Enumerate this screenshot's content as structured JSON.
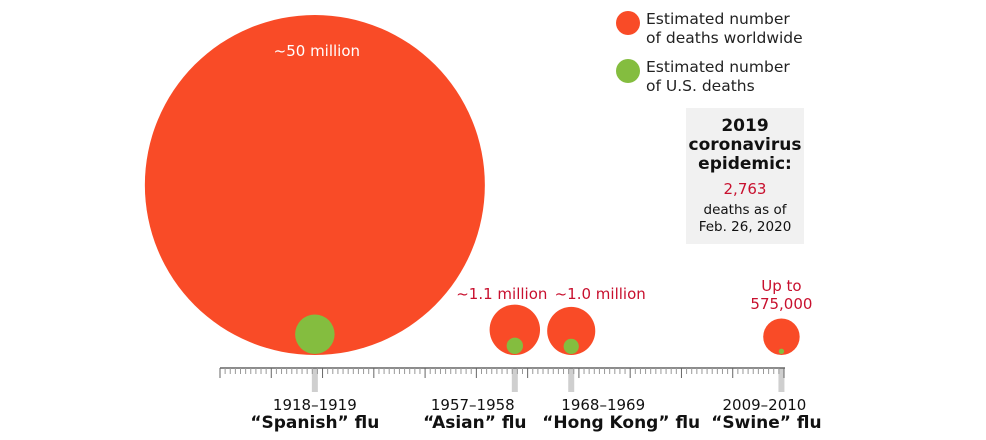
{
  "chart_data": {
    "type": "bubble-timeline",
    "x_axis": {
      "min": 1900,
      "max": 2010,
      "minor_tick_every": 1,
      "major_tick_every": 10
    },
    "legend": {
      "placement": "top-right",
      "items": [
        {
          "label": "Estimated number\nof deaths worldwide",
          "color": "#f94b27"
        },
        {
          "label": "Estimated number\nof U.S. deaths",
          "color": "#84bd3f"
        }
      ]
    },
    "pandemics": [
      {
        "years": "1918–1919",
        "name": "“Spanish” flu",
        "year_mid": 1918.5,
        "world_deaths": 50000000,
        "world_label": "~50 million",
        "us_deaths": 675000
      },
      {
        "years": "1957–1958",
        "name": "“Asian” flu",
        "year_mid": 1957.5,
        "world_deaths": 1100000,
        "world_label": "~1.1 million",
        "us_deaths": 116000
      },
      {
        "years": "1968–1969",
        "name": "“Hong Kong” flu",
        "year_mid": 1968.5,
        "world_deaths": 1000000,
        "world_label": "~1.0 million",
        "us_deaths": 100000
      },
      {
        "years": "2009–2010",
        "name": "“Swine” flu",
        "year_mid": 2009.5,
        "world_deaths": 575000,
        "world_label": "Up to\n575,000",
        "us_deaths": 12500
      }
    ],
    "callout": {
      "title": "2019\ncoronavirus\nepidemic:",
      "number": "2,763",
      "subtitle": "deaths as of\nFeb. 26, 2020"
    }
  }
}
